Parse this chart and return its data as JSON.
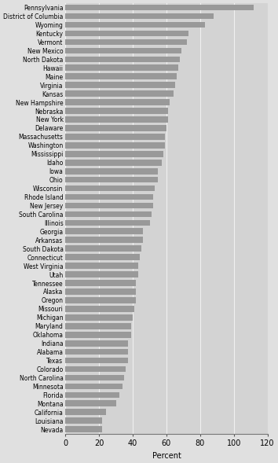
{
  "states": [
    "Pennsylvania",
    "District of Columbia",
    "Wyoming",
    "Kentucky",
    "Vermont",
    "New Mexico",
    "North Dakota",
    "Hawaii",
    "Maine",
    "Virginia",
    "Kansas",
    "New Hampshire",
    "Nebraska",
    "New York",
    "Delaware",
    "Massachusetts",
    "Washington",
    "Mississippi",
    "Idaho",
    "Iowa",
    "Ohio",
    "Wisconsin",
    "Rhode Island",
    "New Jersey",
    "South Carolina",
    "Illinois",
    "Georgia",
    "Arkansas",
    "South Dakota",
    "Connecticut",
    "West Virginia",
    "Utah",
    "Tennessee",
    "Alaska",
    "Oregon",
    "Missouri",
    "Michigan",
    "Maryland",
    "Oklahoma",
    "Indiana",
    "Alabama",
    "Texas",
    "Colorado",
    "North Carolina",
    "Minnesota",
    "Florida",
    "Montana",
    "California",
    "Louisiana",
    "Nevada"
  ],
  "values": [
    112,
    88,
    83,
    73,
    72,
    69,
    68,
    67,
    66,
    65,
    64,
    62,
    61,
    61,
    60,
    59,
    59,
    58,
    57,
    55,
    55,
    53,
    52,
    52,
    51,
    50,
    46,
    46,
    45,
    44,
    43,
    43,
    42,
    42,
    42,
    41,
    40,
    39,
    39,
    37,
    37,
    37,
    36,
    35,
    34,
    32,
    30,
    24,
    22,
    22
  ],
  "bar_color": "#999999",
  "xlabel": "Percent",
  "xlim": [
    0,
    120
  ],
  "xticks": [
    0,
    20,
    40,
    60,
    80,
    100,
    120
  ],
  "outer_bg": "#e0e0e0",
  "inner_bg": "#d3d3d3",
  "grid_color": "#f0f0f0",
  "label_fontsize": 5.5,
  "axis_fontsize": 7.0
}
